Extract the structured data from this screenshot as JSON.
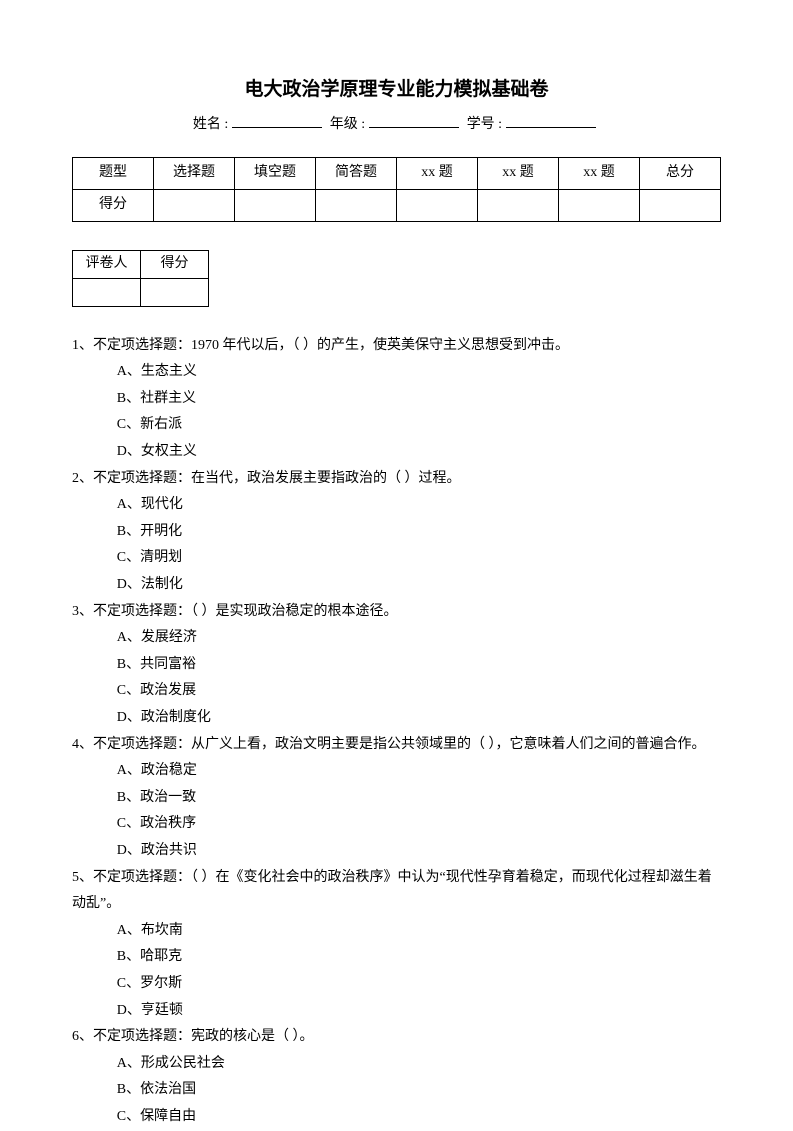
{
  "title": "电大政治学原理专业能力模拟基础卷",
  "info": {
    "name_label": "姓名 :",
    "grade_label": "年级 :",
    "id_label": "学号 :"
  },
  "score_table": {
    "headers": [
      "题型",
      "选择题",
      "填空题",
      "简答题",
      "xx 题",
      "xx 题",
      "xx 题",
      "总分"
    ],
    "row_label": "得分"
  },
  "grader_table": {
    "col1": "评卷人",
    "col2": "得分"
  },
  "questions": [
    {
      "stem": "1、不定项选择题：1970 年代以后，（  ）的产生，使英美保守主义思想受到冲击。",
      "opts": [
        "A、生态主义",
        "B、社群主义",
        "C、新右派",
        "D、女权主义"
      ]
    },
    {
      "stem": "2、不定项选择题：在当代，政治发展主要指政治的（  ）过程。",
      "opts": [
        "A、现代化",
        "B、开明化",
        "C、清明划",
        "D、法制化"
      ]
    },
    {
      "stem": "3、不定项选择题：（  ）是实现政治稳定的根本途径。",
      "opts": [
        "A、发展经济",
        "B、共同富裕",
        "C、政治发展",
        "D、政治制度化"
      ]
    },
    {
      "stem": "4、不定项选择题：从广义上看，政治文明主要是指公共领域里的（  ），它意味着人们之间的普遍合作。",
      "opts": [
        "A、政治稳定",
        "B、政治一致",
        "C、政治秩序",
        "D、政治共识"
      ]
    },
    {
      "stem": "5、不定项选择题：（  ）在《变化社会中的政治秩序》中认为“现代性孕育着稳定，而现代化过程却滋生着动乱”。",
      "opts": [
        "A、布坎南",
        "B、哈耶克",
        "C、罗尔斯",
        "D、亨廷顿"
      ]
    },
    {
      "stem": "6、不定项选择题：宪政的核心是（  ）。",
      "opts": [
        "A、形成公民社会",
        "B、依法治国",
        "C、保障自由"
      ]
    }
  ]
}
